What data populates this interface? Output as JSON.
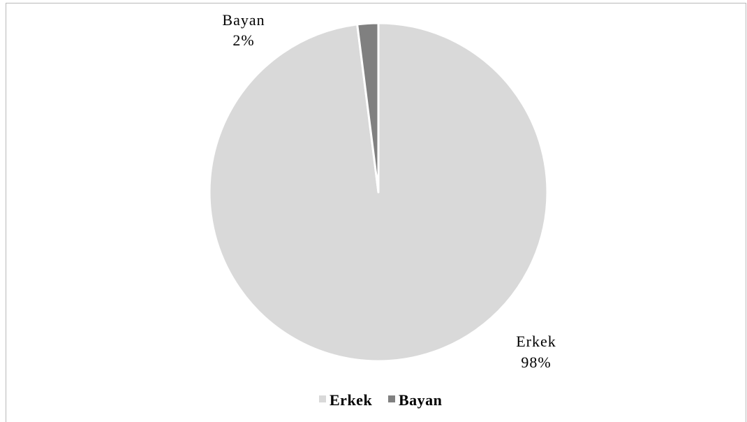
{
  "chart_data": {
    "type": "pie",
    "title": "",
    "categories": [
      "Erkek",
      "Bayan"
    ],
    "values": [
      98,
      2
    ],
    "unit": "%",
    "data_labels": [
      {
        "category": "Erkek",
        "percent": "98%"
      },
      {
        "category": "Bayan",
        "percent": "2%"
      }
    ],
    "colors": [
      "#d9d9d9",
      "#808080"
    ],
    "slice_border_color": "#ffffff",
    "legend": {
      "position": "bottom",
      "entries": [
        "Erkek",
        "Bayan"
      ]
    }
  }
}
